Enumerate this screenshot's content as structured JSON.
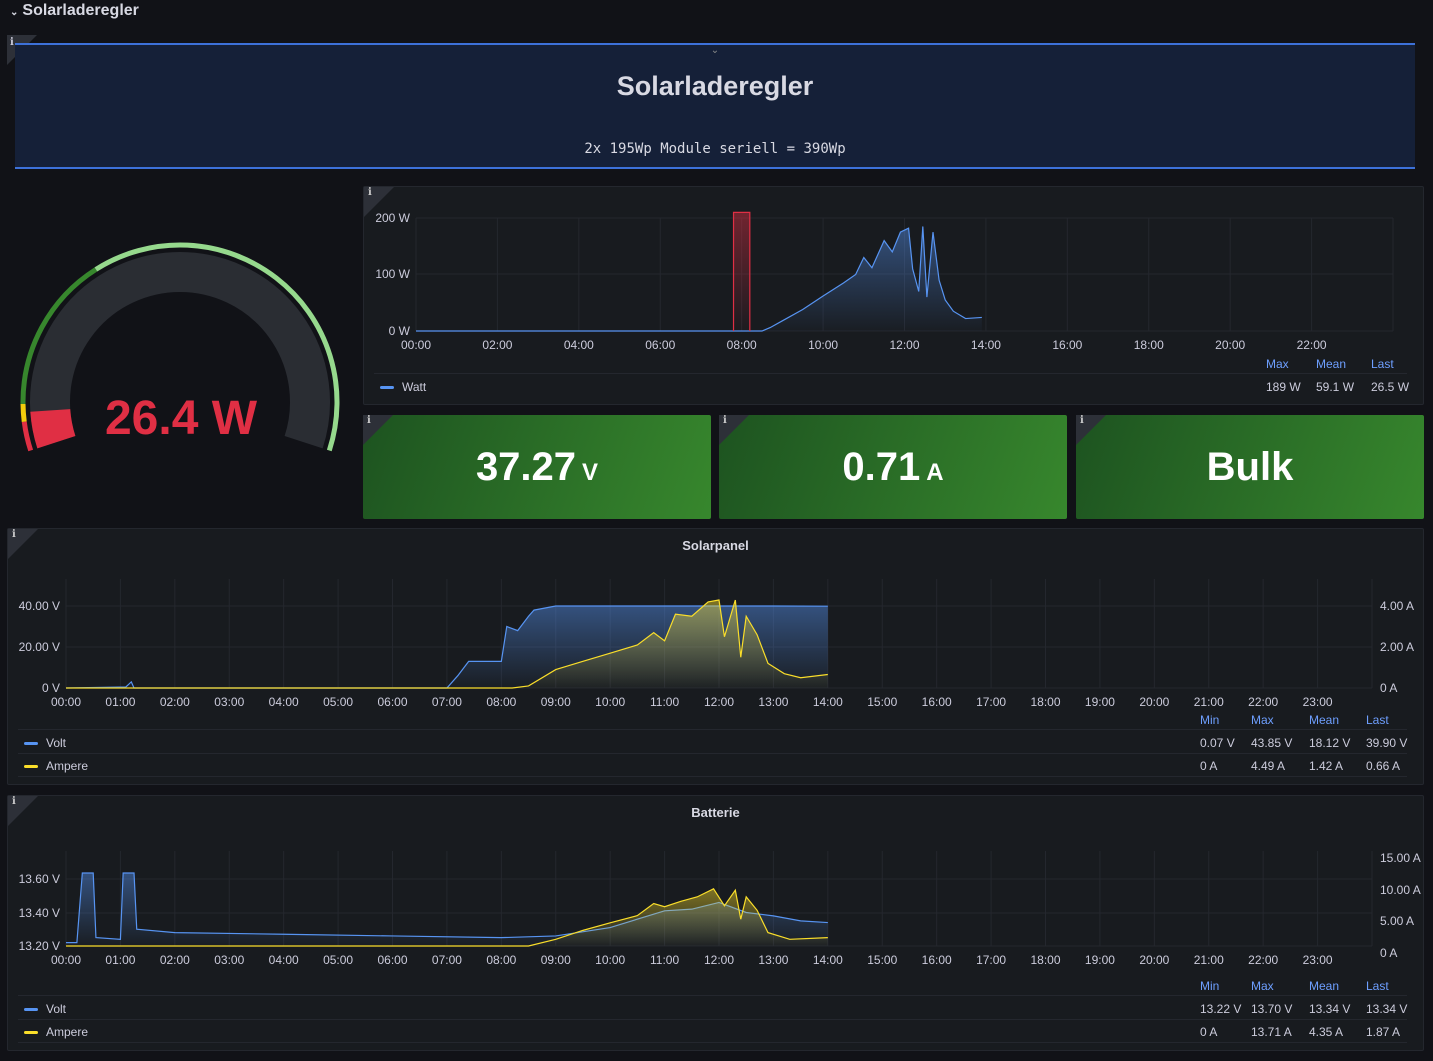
{
  "row": {
    "title": "Solarladeregler"
  },
  "text_panel": {
    "title": "Solarladeregler",
    "subtitle": "2x 195Wp Module seriell = 390Wp"
  },
  "info_icon": "i",
  "gauge": {
    "value_text": "26.4 W",
    "value": 26.4,
    "min": 0,
    "max": 400,
    "value_color": "#e02f44",
    "thresholds": [
      {
        "to": 20,
        "color": "#e02f44"
      },
      {
        "to": 32,
        "color": "#f2cc0c"
      },
      {
        "to": 140,
        "color": "#37872d"
      },
      {
        "to": 400,
        "color": "#96d98d"
      }
    ]
  },
  "stats": [
    {
      "value": "37.27",
      "unit": "V"
    },
    {
      "value": "0.71",
      "unit": "A"
    },
    {
      "value": "Bulk",
      "unit": ""
    }
  ],
  "chart_data": [
    {
      "type": "line",
      "title": "",
      "x_ticks": [
        "00:00",
        "02:00",
        "04:00",
        "06:00",
        "08:00",
        "10:00",
        "12:00",
        "14:00",
        "16:00",
        "18:00",
        "20:00",
        "22:00"
      ],
      "y_ticks": [
        "200 W",
        "100 W",
        "0 W"
      ],
      "ylim": [
        0,
        200
      ],
      "xlim": [
        0,
        24
      ],
      "series": [
        {
          "name": "Watt",
          "color": "#5794f2",
          "points": [
            [
              0,
              0
            ],
            [
              8.5,
              0
            ],
            [
              8.7,
              6
            ],
            [
              9,
              18
            ],
            [
              9.5,
              38
            ],
            [
              10,
              62
            ],
            [
              10.5,
              85
            ],
            [
              10.8,
              100
            ],
            [
              11,
              130
            ],
            [
              11.2,
              112
            ],
            [
              11.5,
              160
            ],
            [
              11.7,
              140
            ],
            [
              11.9,
              175
            ],
            [
              12.1,
              182
            ],
            [
              12.2,
              110
            ],
            [
              12.35,
              70
            ],
            [
              12.45,
              185
            ],
            [
              12.55,
              60
            ],
            [
              12.7,
              175
            ],
            [
              12.85,
              90
            ],
            [
              13,
              55
            ],
            [
              13.2,
              35
            ],
            [
              13.5,
              22
            ],
            [
              13.9,
              24
            ]
          ]
        },
        {
          "name": "",
          "color": "#e02f44",
          "points": [
            [
              7.8,
              0
            ],
            [
              7.8,
              210
            ],
            [
              8.2,
              210
            ],
            [
              8.2,
              0
            ]
          ]
        }
      ],
      "legend": {
        "headers": [
          "Max",
          "Mean",
          "Last"
        ],
        "rows": [
          {
            "name": "Watt",
            "color": "#5794f2",
            "values": [
              "189 W",
              "59.1 W",
              "26.5 W"
            ]
          }
        ]
      }
    },
    {
      "type": "line",
      "title": "Solarpanel",
      "x_ticks": [
        "00:00",
        "01:00",
        "02:00",
        "03:00",
        "04:00",
        "05:00",
        "06:00",
        "07:00",
        "08:00",
        "09:00",
        "10:00",
        "11:00",
        "12:00",
        "13:00",
        "14:00",
        "15:00",
        "16:00",
        "17:00",
        "18:00",
        "19:00",
        "20:00",
        "21:00",
        "22:00",
        "23:00"
      ],
      "y_ticks": [
        "40.00 V",
        "20.00 V",
        "0 V"
      ],
      "y2_ticks": [
        "4.00 A",
        "2.00 A",
        "0 A"
      ],
      "ylim": [
        0,
        40
      ],
      "y2lim": [
        0,
        4
      ],
      "xlim": [
        0,
        24
      ],
      "series": [
        {
          "name": "Volt",
          "color": "#5794f2",
          "axis": "left",
          "points": [
            [
              0,
              0
            ],
            [
              1.1,
              0.5
            ],
            [
              1.2,
              3
            ],
            [
              1.25,
              0
            ],
            [
              7,
              0
            ],
            [
              7.2,
              6
            ],
            [
              7.4,
              13
            ],
            [
              8,
              13
            ],
            [
              8.1,
              30
            ],
            [
              8.3,
              28
            ],
            [
              8.5,
              35
            ],
            [
              8.6,
              38
            ],
            [
              9,
              40
            ],
            [
              10,
              40
            ],
            [
              11,
              40
            ],
            [
              12,
              40
            ],
            [
              13,
              40
            ],
            [
              14,
              39.9
            ]
          ]
        },
        {
          "name": "Ampere",
          "color": "#fade2a",
          "axis": "right",
          "points": [
            [
              0,
              0
            ],
            [
              8.2,
              0
            ],
            [
              8.5,
              0.1
            ],
            [
              9,
              0.9
            ],
            [
              9.5,
              1.3
            ],
            [
              10,
              1.7
            ],
            [
              10.5,
              2.1
            ],
            [
              10.8,
              2.7
            ],
            [
              11,
              2.3
            ],
            [
              11.2,
              3.6
            ],
            [
              11.5,
              3.5
            ],
            [
              11.8,
              4.2
            ],
            [
              12,
              4.3
            ],
            [
              12.1,
              2.5
            ],
            [
              12.3,
              4.3
            ],
            [
              12.4,
              1.5
            ],
            [
              12.5,
              3.5
            ],
            [
              12.7,
              2.6
            ],
            [
              12.9,
              1.2
            ],
            [
              13.2,
              0.7
            ],
            [
              13.5,
              0.5
            ],
            [
              14,
              0.66
            ]
          ]
        }
      ],
      "legend": {
        "headers": [
          "Min",
          "Max",
          "Mean",
          "Last"
        ],
        "rows": [
          {
            "name": "Volt",
            "color": "#5794f2",
            "values": [
              "0.07 V",
              "43.85 V",
              "18.12 V",
              "39.90 V"
            ]
          },
          {
            "name": "Ampere",
            "color": "#fade2a",
            "values": [
              "0 A",
              "4.49 A",
              "1.42 A",
              "0.66 A"
            ]
          }
        ]
      }
    },
    {
      "type": "line",
      "title": "Batterie",
      "x_ticks": [
        "00:00",
        "01:00",
        "02:00",
        "03:00",
        "04:00",
        "05:00",
        "06:00",
        "07:00",
        "08:00",
        "09:00",
        "10:00",
        "11:00",
        "12:00",
        "13:00",
        "14:00",
        "15:00",
        "16:00",
        "17:00",
        "18:00",
        "19:00",
        "20:00",
        "21:00",
        "22:00",
        "23:00"
      ],
      "y_ticks": [
        "13.60 V",
        "13.40 V",
        "13.20 V"
      ],
      "y2_ticks": [
        "15.00 A",
        "10.00 A",
        "5.00 A",
        "0 A"
      ],
      "ylim": [
        13.2,
        13.6
      ],
      "y2lim": [
        0,
        15
      ],
      "xlim": [
        0,
        24
      ],
      "series": [
        {
          "name": "Volt",
          "color": "#5794f2",
          "axis": "left",
          "points": [
            [
              0,
              13.22
            ],
            [
              0.2,
              13.22
            ],
            [
              0.3,
              13.66
            ],
            [
              0.5,
              13.67
            ],
            [
              0.55,
              13.25
            ],
            [
              1,
              13.24
            ],
            [
              1.05,
              13.67
            ],
            [
              1.25,
              13.67
            ],
            [
              1.3,
              13.3
            ],
            [
              2,
              13.28
            ],
            [
              4,
              13.27
            ],
            [
              6,
              13.26
            ],
            [
              8,
              13.25
            ],
            [
              9,
              13.26
            ],
            [
              10,
              13.31
            ],
            [
              11,
              13.41
            ],
            [
              11.5,
              13.42
            ],
            [
              12,
              13.46
            ],
            [
              12.5,
              13.4
            ],
            [
              13,
              13.38
            ],
            [
              13.5,
              13.35
            ],
            [
              14,
              13.34
            ]
          ]
        },
        {
          "name": "Ampere",
          "color": "#fade2a",
          "axis": "right",
          "points": [
            [
              0,
              0
            ],
            [
              8.5,
              0
            ],
            [
              9,
              1.5
            ],
            [
              9.5,
              3.5
            ],
            [
              10,
              5.2
            ],
            [
              10.5,
              6.8
            ],
            [
              10.8,
              9.5
            ],
            [
              11,
              8.8
            ],
            [
              11.3,
              10
            ],
            [
              11.6,
              11
            ],
            [
              11.9,
              12.8
            ],
            [
              12.1,
              9
            ],
            [
              12.3,
              12.5
            ],
            [
              12.4,
              6
            ],
            [
              12.5,
              11
            ],
            [
              12.7,
              8
            ],
            [
              12.9,
              3
            ],
            [
              13.3,
              1.5
            ],
            [
              14,
              1.87
            ]
          ]
        }
      ],
      "legend": {
        "headers": [
          "Min",
          "Max",
          "Mean",
          "Last"
        ],
        "rows": [
          {
            "name": "Volt",
            "color": "#5794f2",
            "values": [
              "13.22 V",
              "13.70 V",
              "13.34 V",
              "13.34 V"
            ]
          },
          {
            "name": "Ampere",
            "color": "#fade2a",
            "values": [
              "0 A",
              "13.71 A",
              "4.35 A",
              "1.87 A"
            ]
          }
        ]
      }
    }
  ]
}
